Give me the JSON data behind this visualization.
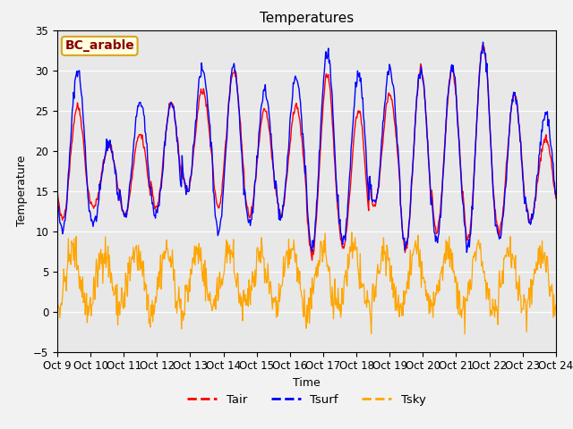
{
  "title": "Temperatures",
  "xlabel": "Time",
  "ylabel": "Temperature",
  "legend_label": "BC_arable",
  "series_labels": [
    "Tair",
    "Tsurf",
    "Tsky"
  ],
  "series_colors": [
    "red",
    "blue",
    "orange"
  ],
  "ylim": [
    -5,
    35
  ],
  "fig_bg_color": "#f2f2f2",
  "axes_bg_color": "#e8e8e8",
  "xtick_labels": [
    "Oct 9",
    "Oct 10",
    "Oct 11",
    "Oct 12",
    "Oct 13",
    "Oct 14",
    "Oct 15",
    "Oct 16",
    "Oct 17",
    "Oct 18",
    "Oct 19",
    "Oct 20",
    "Oct 21",
    "Oct 22",
    "Oct 23",
    "Oct 24"
  ],
  "num_days": 16,
  "tair_day_peaks": [
    25.5,
    20.5,
    22.0,
    26.0,
    27.5,
    30.0,
    25.0,
    25.5,
    29.5,
    25.0,
    27.0,
    30.0,
    30.0,
    33.0,
    27.0,
    21.5
  ],
  "tsurf_day_peaks": [
    30.0,
    21.0,
    26.0,
    26.0,
    30.0,
    30.5,
    27.5,
    29.0,
    32.0,
    29.5,
    30.0,
    30.0,
    30.5,
    33.0,
    27.0,
    24.5
  ],
  "tair_day_mins": [
    11.5,
    13.0,
    12.0,
    13.0,
    15.0,
    13.0,
    12.0,
    12.0,
    7.0,
    8.0,
    13.0,
    8.0,
    10.0,
    9.0,
    10.0,
    11.5
  ],
  "tsurf_day_mins": [
    10.0,
    11.0,
    12.0,
    12.0,
    15.0,
    10.0,
    11.0,
    12.0,
    8.0,
    9.0,
    13.0,
    8.0,
    9.0,
    8.0,
    9.0,
    11.0
  ]
}
